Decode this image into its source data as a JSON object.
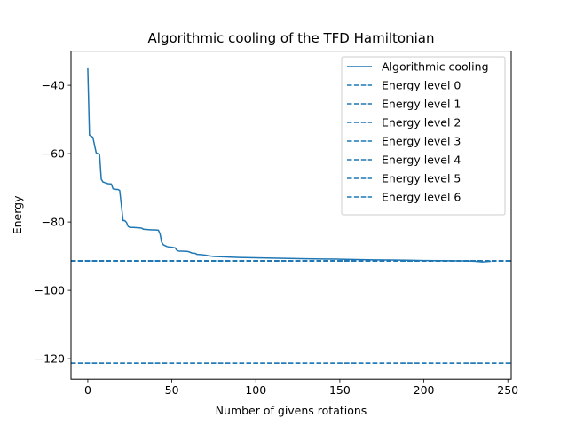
{
  "chart_data": {
    "type": "line",
    "title": "Algorithmic cooling of the TFD Hamiltonian",
    "xlabel": "Number of givens rotations",
    "ylabel": "Energy",
    "xlim": [
      -10,
      252
    ],
    "ylim": [
      -126,
      -30
    ],
    "xticks": [
      0,
      50,
      100,
      150,
      200,
      250
    ],
    "yticks": [
      -40,
      -60,
      -80,
      -100,
      -120
    ],
    "grid": false,
    "legend_position": "top-right",
    "color": "#1f77b4",
    "series": [
      {
        "name": "Algorithmic cooling",
        "style": "solid",
        "x": [
          0,
          1,
          3,
          5,
          6,
          7,
          8,
          9,
          12,
          14,
          15,
          17,
          18,
          19,
          21,
          22,
          23,
          24,
          25,
          26,
          27,
          30,
          32,
          33,
          38,
          40,
          42,
          43,
          44,
          45,
          47,
          48,
          50,
          52,
          53,
          54,
          59,
          60,
          62,
          64,
          65,
          68,
          70,
          72,
          75,
          80,
          90,
          100,
          110,
          120,
          130,
          140,
          150,
          160,
          170,
          180,
          190,
          200,
          210,
          220,
          225,
          230,
          235,
          240
        ],
        "y": [
          -35,
          -54.6,
          -55.2,
          -59.8,
          -60,
          -60.3,
          -67.5,
          -68.3,
          -68.8,
          -68.9,
          -70.3,
          -70.5,
          -70.5,
          -70.8,
          -79.6,
          -79.6,
          -80.1,
          -81.3,
          -81.6,
          -81.6,
          -81.6,
          -81.7,
          -81.8,
          -82.1,
          -82.3,
          -82.3,
          -82.4,
          -83.5,
          -86.0,
          -86.7,
          -87.2,
          -87.3,
          -87.4,
          -87.6,
          -88.3,
          -88.5,
          -88.6,
          -88.7,
          -89.1,
          -89.2,
          -89.5,
          -89.6,
          -89.7,
          -89.9,
          -90.1,
          -90.2,
          -90.4,
          -90.5,
          -90.6,
          -90.7,
          -90.8,
          -90.85,
          -90.9,
          -91.0,
          -91.1,
          -91.15,
          -91.2,
          -91.3,
          -91.35,
          -91.4,
          -91.4,
          -91.5,
          -91.7,
          -91.5
        ]
      },
      {
        "name": "Energy level 0",
        "style": "dashed",
        "y": -121.3
      },
      {
        "name": "Energy level 1",
        "style": "dashed",
        "y": -121.3
      },
      {
        "name": "Energy level 2",
        "style": "dashed",
        "y": -91.4
      },
      {
        "name": "Energy level 3",
        "style": "dashed",
        "y": -91.4
      },
      {
        "name": "Energy level 4",
        "style": "dashed",
        "y": -91.4
      },
      {
        "name": "Energy level 5",
        "style": "dashed",
        "y": -91.4
      },
      {
        "name": "Energy level 6",
        "style": "dashed",
        "y": -91.4
      }
    ]
  }
}
